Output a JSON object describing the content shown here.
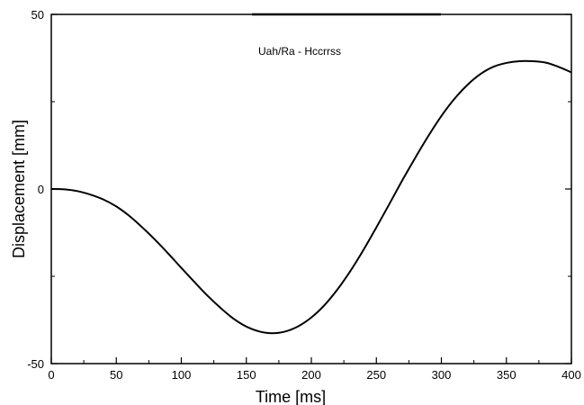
{
  "chart_data": {
    "type": "line",
    "title": "",
    "xlabel": "Time [ms]",
    "ylabel": "Displacement [mm]",
    "xlim": [
      0,
      400
    ],
    "ylim": [
      -50,
      50
    ],
    "x_major_ticks": [
      0,
      50,
      100,
      150,
      200,
      250,
      300,
      350,
      400
    ],
    "y_major_ticks": [
      -50,
      0,
      50
    ],
    "y_minor_ticks": [
      -25,
      25
    ],
    "x_tick_labels": [
      "0",
      "50",
      "100",
      "150",
      "200",
      "250",
      "300",
      "350",
      "400"
    ],
    "y_tick_labels": [
      "-50",
      "0",
      "50"
    ],
    "grid": false,
    "legend": "none",
    "annotation": "Uah/Ra  - Hccrrss",
    "line_color": "#000000",
    "series": [
      {
        "x": [
          0,
          10,
          20,
          30,
          40,
          50,
          60,
          70,
          80,
          90,
          100,
          110,
          120,
          130,
          140,
          150,
          160,
          170,
          180,
          190,
          200,
          210,
          220,
          230,
          240,
          250,
          260,
          270,
          280,
          290,
          300,
          310,
          320,
          330,
          340,
          350,
          360,
          370,
          380,
          390,
          400
        ],
        "y": [
          0,
          -0.1,
          -0.6,
          -1.6,
          -3.0,
          -5.0,
          -7.7,
          -11.0,
          -14.6,
          -18.5,
          -22.6,
          -26.6,
          -30.5,
          -34.0,
          -37.1,
          -39.4,
          -40.8,
          -41.3,
          -40.8,
          -39.3,
          -36.8,
          -33.3,
          -28.8,
          -23.5,
          -17.5,
          -11.0,
          -4.3,
          2.5,
          9.0,
          15.2,
          20.9,
          25.8,
          29.8,
          32.9,
          35.0,
          36.1,
          36.6,
          36.6,
          36.2,
          35.0,
          33.4
        ]
      }
    ]
  }
}
